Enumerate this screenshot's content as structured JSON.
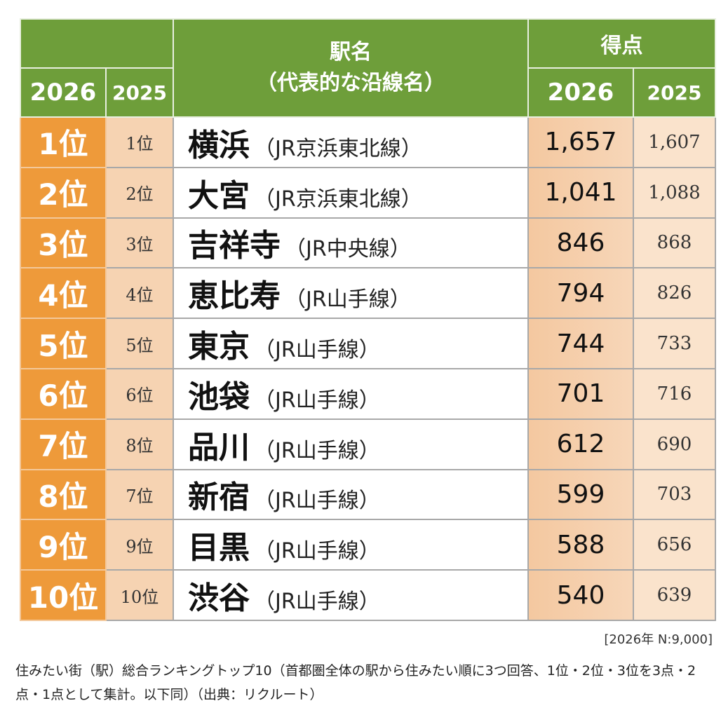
{
  "header": {
    "rank_label": "",
    "year_now": "2026",
    "year_prev": "2025",
    "station_title_line1": "駅名",
    "station_title_line2": "（代表的な沿線名）",
    "score_title": "得点"
  },
  "rows": [
    {
      "rank_now": "1位",
      "rank_prev": "1位",
      "station": "横浜",
      "line": "（JR京浜東北線）",
      "score_now": "1,657",
      "score_prev": "1,607"
    },
    {
      "rank_now": "2位",
      "rank_prev": "2位",
      "station": "大宮",
      "line": "（JR京浜東北線）",
      "score_now": "1,041",
      "score_prev": "1,088"
    },
    {
      "rank_now": "3位",
      "rank_prev": "3位",
      "station": "吉祥寺",
      "line": "（JR中央線）",
      "score_now": "846",
      "score_prev": "868"
    },
    {
      "rank_now": "4位",
      "rank_prev": "4位",
      "station": "恵比寿",
      "line": "（JR山手線）",
      "score_now": "794",
      "score_prev": "826"
    },
    {
      "rank_now": "5位",
      "rank_prev": "5位",
      "station": "東京",
      "line": "（JR山手線）",
      "score_now": "744",
      "score_prev": "733"
    },
    {
      "rank_now": "6位",
      "rank_prev": "6位",
      "station": "池袋",
      "line": "（JR山手線）",
      "score_now": "701",
      "score_prev": "716"
    },
    {
      "rank_now": "7位",
      "rank_prev": "8位",
      "station": "品川",
      "line": "（JR山手線）",
      "score_now": "612",
      "score_prev": "690"
    },
    {
      "rank_now": "8位",
      "rank_prev": "7位",
      "station": "新宿",
      "line": "（JR山手線）",
      "score_now": "599",
      "score_prev": "703"
    },
    {
      "rank_now": "9位",
      "rank_prev": "9位",
      "station": "目黒",
      "line": "（JR山手線）",
      "score_now": "588",
      "score_prev": "656"
    },
    {
      "rank_now": "10位",
      "rank_prev": "10位",
      "station": "渋谷",
      "line": "（JR山手線）",
      "score_now": "540",
      "score_prev": "639"
    }
  ],
  "note": "[2026年 N:9,000]",
  "caption": "住みたい街（駅）総合ランキングトップ10（首都圏全体の駅から住みたい順に3つ回答、1位・2位・3位を3点・2点・1点として集計。以下同）（出典：リクルート）",
  "colors": {
    "header_green": "#6e9e3a",
    "rank_orange": "#ee9a3a",
    "rank_prev_peach": "#f6d3b2",
    "score_peach": "#f4c8a0"
  }
}
